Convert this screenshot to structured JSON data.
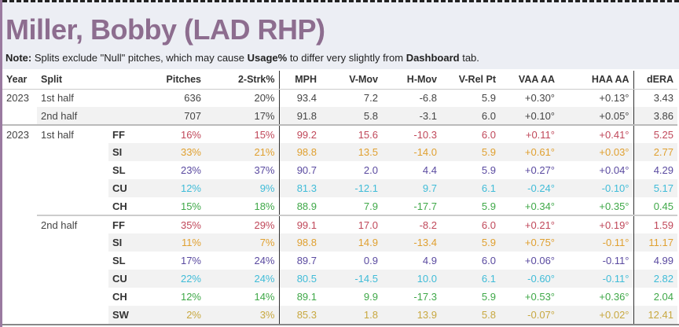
{
  "title": "Miller, Bobby (LAD RHP)",
  "note": {
    "label": "Note:",
    "text1": " Splits exclude \"Null\" pitches, which may cause ",
    "bold1": "Usage%",
    "text2": " to differ very slightly from ",
    "bold2": "Dashboard",
    "text3": " tab."
  },
  "colors": {
    "FF": "#c0485a",
    "SI": "#e0a030",
    "SL": "#5a4aa0",
    "CU": "#40bcd8",
    "CH": "#3fa848",
    "SW": "#c8a840",
    "title": "#8d6d8f"
  },
  "columns": [
    "Year",
    "Split",
    "",
    "Pitches",
    "2-Strk%",
    "MPH",
    "V-Mov",
    "H-Mov",
    "V-Rel Pt",
    "VAA AA",
    "HAA AA",
    "dERA"
  ],
  "summary_rows": [
    {
      "year": "2023",
      "split": "1st half",
      "values": [
        "636",
        "20%",
        "93.4",
        "7.2",
        "-6.8",
        "5.9",
        "+0.30°",
        "+0.13°",
        "3.43"
      ]
    },
    {
      "year": "",
      "split": "2nd half",
      "values": [
        "707",
        "17%",
        "91.8",
        "5.8",
        "-3.1",
        "6.0",
        "+0.10°",
        "+0.05°",
        "3.86"
      ]
    }
  ],
  "pitch_rows": [
    {
      "year": "2023",
      "split": "1st half",
      "type": "FF",
      "values": [
        "16%",
        "15%",
        "99.2",
        "15.6",
        "-10.3",
        "6.0",
        "+0.11°",
        "+0.41°",
        "5.25"
      ]
    },
    {
      "year": "",
      "split": "",
      "type": "SI",
      "values": [
        "33%",
        "21%",
        "98.8",
        "13.5",
        "-14.0",
        "5.9",
        "+0.61°",
        "+0.03°",
        "2.77"
      ]
    },
    {
      "year": "",
      "split": "",
      "type": "SL",
      "values": [
        "23%",
        "37%",
        "90.7",
        "2.0",
        "4.4",
        "5.9",
        "+0.27°",
        "+0.04°",
        "4.29"
      ]
    },
    {
      "year": "",
      "split": "",
      "type": "CU",
      "values": [
        "12%",
        "9%",
        "81.3",
        "-12.1",
        "9.7",
        "6.1",
        "-0.24°",
        "-0.10°",
        "5.17"
      ]
    },
    {
      "year": "",
      "split": "",
      "type": "CH",
      "values": [
        "15%",
        "18%",
        "88.9",
        "7.9",
        "-17.7",
        "5.9",
        "+0.34°",
        "+0.35°",
        "0.45"
      ]
    },
    {
      "year": "",
      "split": "2nd half",
      "type": "FF",
      "values": [
        "35%",
        "29%",
        "99.1",
        "17.0",
        "-8.2",
        "6.0",
        "+0.21°",
        "+0.19°",
        "1.59"
      ]
    },
    {
      "year": "",
      "split": "",
      "type": "SI",
      "values": [
        "11%",
        "7%",
        "98.8",
        "14.9",
        "-13.4",
        "5.9",
        "+0.75°",
        "-0.11°",
        "11.17"
      ]
    },
    {
      "year": "",
      "split": "",
      "type": "SL",
      "values": [
        "17%",
        "24%",
        "89.7",
        "0.9",
        "4.9",
        "6.0",
        "+0.06°",
        "-0.11°",
        "4.99"
      ]
    },
    {
      "year": "",
      "split": "",
      "type": "CU",
      "values": [
        "22%",
        "24%",
        "80.5",
        "-14.5",
        "10.0",
        "6.1",
        "-0.60°",
        "-0.11°",
        "2.82"
      ]
    },
    {
      "year": "",
      "split": "",
      "type": "CH",
      "values": [
        "12%",
        "14%",
        "89.1",
        "9.9",
        "-17.3",
        "5.9",
        "+0.53°",
        "+0.36°",
        "2.04"
      ]
    },
    {
      "year": "",
      "split": "",
      "type": "SW",
      "values": [
        "2%",
        "3%",
        "85.3",
        "1.8",
        "13.9",
        "5.8",
        "-0.07°",
        "+0.02°",
        "12.41"
      ]
    }
  ]
}
